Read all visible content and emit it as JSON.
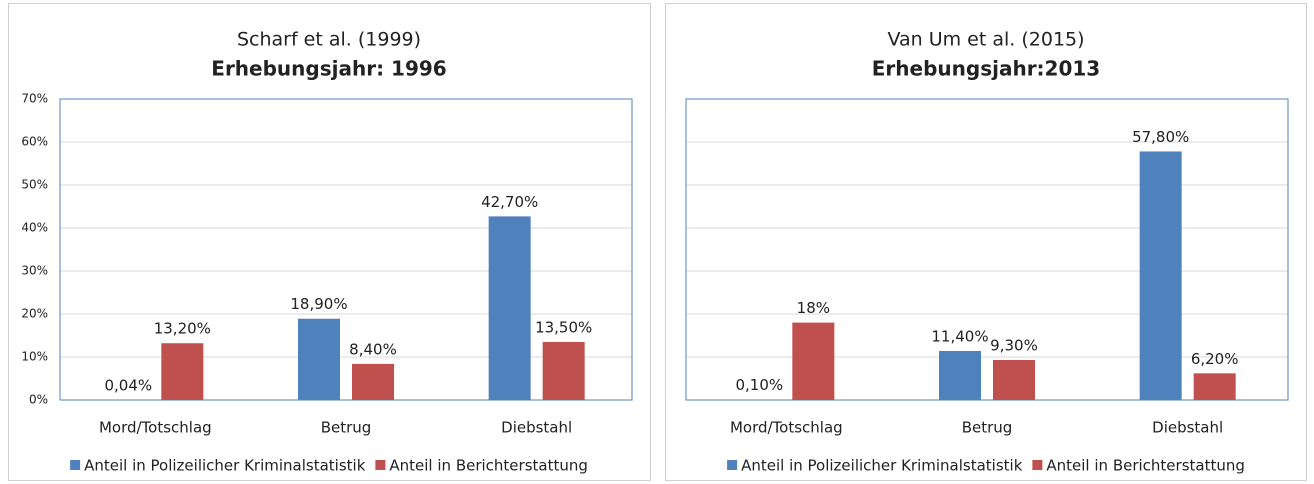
{
  "chart_data": [
    {
      "type": "bar",
      "title": "Scharf et al. (1999)",
      "subtitle": "Erhebungsjahr: 1996",
      "categories": [
        "Mord/Totschlag",
        "Betrug",
        "Diebstahl"
      ],
      "series": [
        {
          "name": "Anteil in Polizeilicher Kriminalstatistik",
          "color": "#4f81bd",
          "values": [
            0.04,
            18.9,
            42.7
          ],
          "value_labels": [
            "0,04%",
            "18,90%",
            "42,70%"
          ]
        },
        {
          "name": "Anteil in Berichterstattung",
          "color": "#c0504d",
          "values": [
            13.2,
            8.4,
            13.5
          ],
          "value_labels": [
            "13,20%",
            "8,40%",
            "13,50%"
          ]
        }
      ],
      "ylim": [
        0,
        70
      ],
      "yticks": [
        {
          "value": 0,
          "label": "0%"
        },
        {
          "value": 10,
          "label": "10%"
        },
        {
          "value": 20,
          "label": "20%"
        },
        {
          "value": 30,
          "label": "30%"
        },
        {
          "value": 40,
          "label": "40%"
        },
        {
          "value": 50,
          "label": "50%"
        },
        {
          "value": 60,
          "label": "60%"
        },
        {
          "value": 70,
          "label": "70%"
        }
      ],
      "grid": true,
      "legend": "bottom"
    },
    {
      "type": "bar",
      "title": "Van Um et al. (2015)",
      "subtitle": "Erhebungsjahr:2013",
      "categories": [
        "Mord/Totschlag",
        "Betrug",
        "Diebstahl"
      ],
      "series": [
        {
          "name": "Anteil in Polizeilicher Kriminalstatistik",
          "color": "#4f81bd",
          "values": [
            0.1,
            11.4,
            57.8
          ],
          "value_labels": [
            "0,10%",
            "11,40%",
            "57,80%"
          ]
        },
        {
          "name": "Anteil in Berichterstattung",
          "color": "#c0504d",
          "values": [
            18,
            9.3,
            6.2
          ],
          "value_labels": [
            "18%",
            "9,30%",
            "6,20%"
          ]
        }
      ],
      "ylim": [
        0,
        70
      ],
      "yticks": [
        0,
        10,
        20,
        30,
        40,
        50,
        60,
        70
      ],
      "show_tick_labels": false,
      "grid": true,
      "legend": "bottom"
    }
  ]
}
